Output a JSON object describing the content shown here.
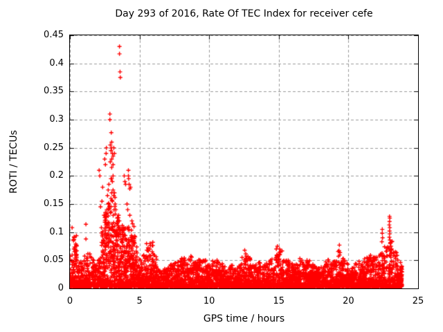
{
  "chart_data": {
    "type": "scatter",
    "title": "Day 293 of 2016, Rate Of TEC Index for receiver cefe",
    "xlabel": "GPS time / hours",
    "ylabel": "ROTI / TECUs",
    "xlim": [
      0,
      25
    ],
    "ylim": [
      0,
      0.45
    ],
    "xticks": [
      {
        "v": 0,
        "label": "0"
      },
      {
        "v": 5,
        "label": "5"
      },
      {
        "v": 10,
        "label": "10"
      },
      {
        "v": 15,
        "label": "15"
      },
      {
        "v": 20,
        "label": "20"
      },
      {
        "v": 25,
        "label": "25"
      }
    ],
    "yticks": [
      {
        "v": 0,
        "label": "0"
      },
      {
        "v": 0.05,
        "label": "0.05"
      },
      {
        "v": 0.1,
        "label": "0.1"
      },
      {
        "v": 0.15,
        "label": "0.15"
      },
      {
        "v": 0.2,
        "label": "0.2"
      },
      {
        "v": 0.25,
        "label": "0.25"
      },
      {
        "v": 0.3,
        "label": "0.3"
      },
      {
        "v": 0.35,
        "label": "0.35"
      },
      {
        "v": 0.4,
        "label": "0.4"
      },
      {
        "v": 0.45,
        "label": "0.45"
      }
    ],
    "grid": true,
    "legend": "none",
    "marker": "plus",
    "marker_size_px": 7,
    "colors": {
      "marker": "#ff0000",
      "grid": "#999999",
      "border": "#000000",
      "background": "#ffffff",
      "text": "#000000"
    },
    "data_start_hour": 0,
    "data_end_hour": 23.85,
    "bin_hours": 0.25,
    "cloud_envelope_note": "approx upper edge of dense point cloud (ROTI, TECUs) per 0.25 h bin starting at hour 0",
    "cloud_envelope": [
      0.06,
      0.095,
      0.055,
      0.048,
      0.058,
      0.065,
      0.055,
      0.048,
      0.06,
      0.11,
      0.135,
      0.155,
      0.165,
      0.15,
      0.115,
      0.115,
      0.115,
      0.105,
      0.095,
      0.08,
      0.052,
      0.06,
      0.082,
      0.085,
      0.062,
      0.036,
      0.035,
      0.04,
      0.042,
      0.045,
      0.05,
      0.05,
      0.058,
      0.052,
      0.058,
      0.048,
      0.05,
      0.055,
      0.053,
      0.045,
      0.042,
      0.05,
      0.052,
      0.045,
      0.04,
      0.037,
      0.042,
      0.035,
      0.04,
      0.055,
      0.068,
      0.058,
      0.048,
      0.042,
      0.05,
      0.045,
      0.045,
      0.052,
      0.06,
      0.072,
      0.07,
      0.058,
      0.05,
      0.045,
      0.042,
      0.048,
      0.055,
      0.048,
      0.05,
      0.045,
      0.042,
      0.038,
      0.04,
      0.048,
      0.052,
      0.048,
      0.055,
      0.072,
      0.058,
      0.05,
      0.042,
      0.04,
      0.046,
      0.048,
      0.055,
      0.058,
      0.062,
      0.065,
      0.06,
      0.07,
      0.085,
      0.075,
      0.09,
      0.068,
      0.055,
      0.04
    ],
    "outliers": [
      [
        0.16,
        0.108
      ],
      [
        0.3,
        0.087
      ],
      [
        1.15,
        0.114
      ],
      [
        1.15,
        0.088
      ],
      [
        2.1,
        0.21
      ],
      [
        2.15,
        0.2
      ],
      [
        2.2,
        0.145
      ],
      [
        2.3,
        0.155
      ],
      [
        2.35,
        0.18
      ],
      [
        2.45,
        0.13
      ],
      [
        2.5,
        0.23
      ],
      [
        2.55,
        0.22
      ],
      [
        2.6,
        0.24
      ],
      [
        2.62,
        0.25
      ],
      [
        2.55,
        0.135
      ],
      [
        2.65,
        0.14
      ],
      [
        2.7,
        0.165
      ],
      [
        2.75,
        0.175
      ],
      [
        2.75,
        0.15
      ],
      [
        2.8,
        0.185
      ],
      [
        2.85,
        0.145
      ],
      [
        2.87,
        0.31
      ],
      [
        2.87,
        0.3
      ],
      [
        2.97,
        0.277
      ],
      [
        2.9,
        0.255
      ],
      [
        2.95,
        0.245
      ],
      [
        3.0,
        0.26
      ],
      [
        3.0,
        0.25
      ],
      [
        3.05,
        0.24
      ],
      [
        3.1,
        0.235
      ],
      [
        3.15,
        0.25
      ],
      [
        3.2,
        0.24
      ],
      [
        2.9,
        0.225
      ],
      [
        3.0,
        0.23
      ],
      [
        3.1,
        0.22
      ],
      [
        3.0,
        0.215
      ],
      [
        2.95,
        0.195
      ],
      [
        3.0,
        0.195
      ],
      [
        3.05,
        0.19
      ],
      [
        3.1,
        0.2
      ],
      [
        3.0,
        0.17
      ],
      [
        2.95,
        0.16
      ],
      [
        3.05,
        0.155
      ],
      [
        3.1,
        0.175
      ],
      [
        3.15,
        0.165
      ],
      [
        3.2,
        0.17
      ],
      [
        3.25,
        0.15
      ],
      [
        3.3,
        0.14
      ],
      [
        3.4,
        0.125
      ],
      [
        3.5,
        0.13
      ],
      [
        3.55,
        0.12
      ],
      [
        3.56,
        0.43
      ],
      [
        3.56,
        0.417
      ],
      [
        3.6,
        0.385
      ],
      [
        3.62,
        0.375
      ],
      [
        3.9,
        0.2
      ],
      [
        3.95,
        0.19
      ],
      [
        4.0,
        0.185
      ],
      [
        4.2,
        0.21
      ],
      [
        4.2,
        0.2
      ],
      [
        4.22,
        0.195
      ],
      [
        4.25,
        0.185
      ],
      [
        4.3,
        0.177
      ],
      [
        4.35,
        0.18
      ],
      [
        4.1,
        0.15
      ],
      [
        4.15,
        0.14
      ],
      [
        4.3,
        0.13
      ],
      [
        4.45,
        0.12
      ],
      [
        4.5,
        0.115
      ],
      [
        4.6,
        0.11
      ],
      [
        12.55,
        0.068
      ],
      [
        14.9,
        0.075
      ],
      [
        15.05,
        0.07
      ],
      [
        19.35,
        0.077
      ],
      [
        22.43,
        0.105
      ],
      [
        22.43,
        0.098
      ],
      [
        22.45,
        0.09
      ],
      [
        22.4,
        0.083
      ],
      [
        22.95,
        0.128
      ],
      [
        22.97,
        0.125
      ],
      [
        22.95,
        0.119
      ],
      [
        22.93,
        0.113
      ],
      [
        22.97,
        0.108
      ],
      [
        22.95,
        0.102
      ],
      [
        22.96,
        0.097
      ],
      [
        22.94,
        0.091
      ],
      [
        22.98,
        0.086
      ],
      [
        23.0,
        0.08
      ],
      [
        23.05,
        0.075
      ],
      [
        23.1,
        0.07
      ]
    ]
  }
}
